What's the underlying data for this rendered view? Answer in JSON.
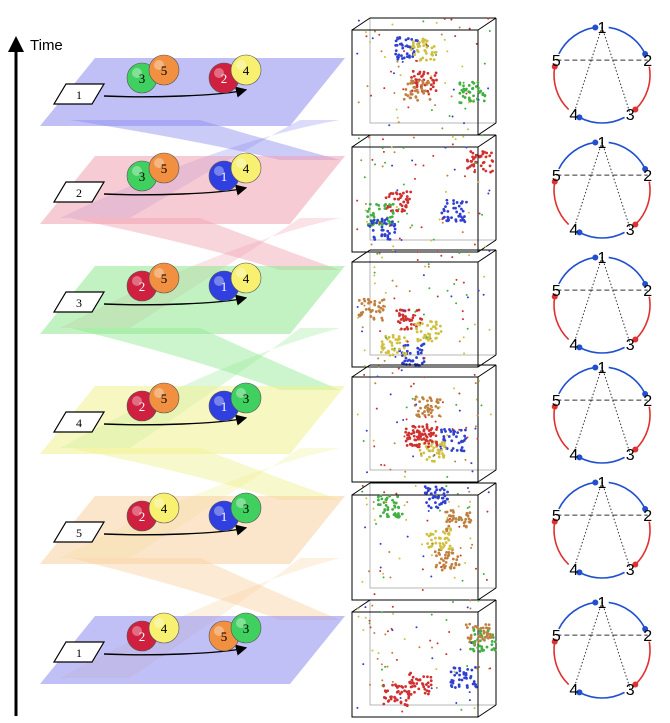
{
  "axis_label": "Time",
  "stages": [
    {
      "slot": "1",
      "balls": [
        "3",
        "5",
        "2",
        "4"
      ],
      "color": "#8c8cf0"
    },
    {
      "slot": "2",
      "balls": [
        "3",
        "5",
        "1",
        "4"
      ],
      "color": "#f0a0b0"
    },
    {
      "slot": "3",
      "balls": [
        "2",
        "5",
        "1",
        "4"
      ],
      "color": "#90e890"
    },
    {
      "slot": "4",
      "balls": [
        "2",
        "5",
        "1",
        "3"
      ],
      "color": "#f0f090"
    },
    {
      "slot": "5",
      "balls": [
        "2",
        "4",
        "1",
        "3"
      ],
      "color": "#f8d0a0"
    },
    {
      "slot": "1",
      "balls": [
        "2",
        "4",
        "5",
        "3"
      ],
      "color": "#8c8cf0"
    }
  ],
  "circle_labels": [
    "1",
    "2",
    "3",
    "4",
    "5"
  ],
  "colors": {
    "red_arrow": "#e03030",
    "blue_arrow": "#2050d0",
    "ball_1": "#3040e0",
    "ball_2": "#d02040",
    "ball_3": "#40d060",
    "ball_4": "#f8f070",
    "ball_5": "#f09040"
  }
}
